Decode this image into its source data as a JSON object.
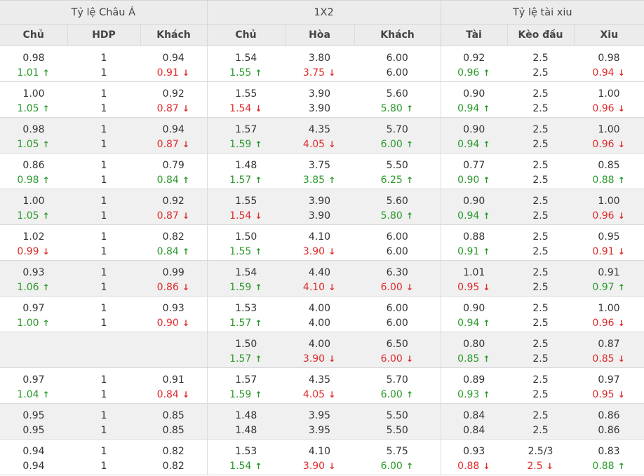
{
  "header": {
    "group_asian": "Tỷ lệ Châu Á",
    "group_1x2": "1X2",
    "group_ou": "Tỷ lệ tài xiu",
    "cols": [
      "Chủ",
      "HDP",
      "Khách",
      "Chủ",
      "Hòa",
      "Khách",
      "Tài",
      "Kèo đầu",
      "Xiu"
    ]
  },
  "rows": [
    {
      "shade": false,
      "top": [
        "0.98",
        "1",
        "0.94",
        "1.54",
        "3.80",
        "6.00",
        "0.92",
        "2.5",
        "0.98"
      ],
      "bottom": [
        [
          "1.01",
          "up"
        ],
        [
          "1",
          ""
        ],
        [
          "0.91",
          "down"
        ],
        [
          "1.55",
          "up"
        ],
        [
          "3.75",
          "down"
        ],
        [
          "6.00",
          ""
        ],
        [
          "0.96",
          "up"
        ],
        [
          "2.5",
          ""
        ],
        [
          "0.94",
          "down"
        ]
      ]
    },
    {
      "shade": false,
      "top": [
        "1.00",
        "1",
        "0.92",
        "1.55",
        "3.90",
        "5.60",
        "0.90",
        "2.5",
        "1.00"
      ],
      "bottom": [
        [
          "1.05",
          "up"
        ],
        [
          "1",
          ""
        ],
        [
          "0.87",
          "down"
        ],
        [
          "1.54",
          "down"
        ],
        [
          "3.90",
          ""
        ],
        [
          "5.80",
          "up"
        ],
        [
          "0.94",
          "up"
        ],
        [
          "2.5",
          ""
        ],
        [
          "0.96",
          "down"
        ]
      ]
    },
    {
      "shade": true,
      "top": [
        "0.98",
        "1",
        "0.94",
        "1.57",
        "4.35",
        "5.70",
        "0.90",
        "2.5",
        "1.00"
      ],
      "bottom": [
        [
          "1.05",
          "up"
        ],
        [
          "1",
          ""
        ],
        [
          "0.87",
          "down"
        ],
        [
          "1.59",
          "up"
        ],
        [
          "4.05",
          "down"
        ],
        [
          "6.00",
          "up"
        ],
        [
          "0.94",
          "up"
        ],
        [
          "2.5",
          ""
        ],
        [
          "0.96",
          "down"
        ]
      ]
    },
    {
      "shade": false,
      "top": [
        "0.86",
        "1",
        "0.79",
        "1.48",
        "3.75",
        "5.50",
        "0.77",
        "2.5",
        "0.85"
      ],
      "bottom": [
        [
          "0.98",
          "up"
        ],
        [
          "1",
          ""
        ],
        [
          "0.84",
          "up"
        ],
        [
          "1.57",
          "up"
        ],
        [
          "3.85",
          "up"
        ],
        [
          "6.25",
          "up"
        ],
        [
          "0.90",
          "up"
        ],
        [
          "2.5",
          ""
        ],
        [
          "0.88",
          "up"
        ]
      ]
    },
    {
      "shade": true,
      "top": [
        "1.00",
        "1",
        "0.92",
        "1.55",
        "3.90",
        "5.60",
        "0.90",
        "2.5",
        "1.00"
      ],
      "bottom": [
        [
          "1.05",
          "up"
        ],
        [
          "1",
          ""
        ],
        [
          "0.87",
          "down"
        ],
        [
          "1.54",
          "down"
        ],
        [
          "3.90",
          ""
        ],
        [
          "5.80",
          "up"
        ],
        [
          "0.94",
          "up"
        ],
        [
          "2.5",
          ""
        ],
        [
          "0.96",
          "down"
        ]
      ]
    },
    {
      "shade": false,
      "top": [
        "1.02",
        "1",
        "0.82",
        "1.50",
        "4.10",
        "6.00",
        "0.88",
        "2.5",
        "0.95"
      ],
      "bottom": [
        [
          "0.99",
          "down"
        ],
        [
          "1",
          ""
        ],
        [
          "0.84",
          "up"
        ],
        [
          "1.55",
          "up"
        ],
        [
          "3.90",
          "down"
        ],
        [
          "6.00",
          ""
        ],
        [
          "0.91",
          "up"
        ],
        [
          "2.5",
          ""
        ],
        [
          "0.91",
          "down"
        ]
      ]
    },
    {
      "shade": true,
      "top": [
        "0.93",
        "1",
        "0.99",
        "1.54",
        "4.40",
        "6.30",
        "1.01",
        "2.5",
        "0.91"
      ],
      "bottom": [
        [
          "1.06",
          "up"
        ],
        [
          "1",
          ""
        ],
        [
          "0.86",
          "down"
        ],
        [
          "1.59",
          "up"
        ],
        [
          "4.10",
          "down"
        ],
        [
          "6.00",
          "down"
        ],
        [
          "0.95",
          "down"
        ],
        [
          "2.5",
          ""
        ],
        [
          "0.97",
          "up"
        ]
      ]
    },
    {
      "shade": false,
      "top": [
        "0.97",
        "1",
        "0.93",
        "1.53",
        "4.00",
        "6.00",
        "0.90",
        "2.5",
        "1.00"
      ],
      "bottom": [
        [
          "1.00",
          "up"
        ],
        [
          "1",
          ""
        ],
        [
          "0.90",
          "down"
        ],
        [
          "1.57",
          "up"
        ],
        [
          "4.00",
          ""
        ],
        [
          "6.00",
          ""
        ],
        [
          "0.94",
          "up"
        ],
        [
          "2.5",
          ""
        ],
        [
          "0.96",
          "down"
        ]
      ]
    },
    {
      "shade": true,
      "top": [
        "",
        "",
        "",
        "1.50",
        "4.00",
        "6.50",
        "0.80",
        "2.5",
        "0.87"
      ],
      "bottom": [
        [
          "",
          ""
        ],
        [
          "",
          ""
        ],
        [
          "",
          ""
        ],
        [
          "1.57",
          "up"
        ],
        [
          "3.90",
          "down"
        ],
        [
          "6.00",
          "down"
        ],
        [
          "0.85",
          "up"
        ],
        [
          "2.5",
          ""
        ],
        [
          "0.85",
          "down"
        ]
      ]
    },
    {
      "shade": false,
      "top": [
        "0.97",
        "1",
        "0.91",
        "1.57",
        "4.35",
        "5.70",
        "0.89",
        "2.5",
        "0.97"
      ],
      "bottom": [
        [
          "1.04",
          "up"
        ],
        [
          "1",
          ""
        ],
        [
          "0.84",
          "down"
        ],
        [
          "1.59",
          "up"
        ],
        [
          "4.05",
          "down"
        ],
        [
          "6.00",
          "up"
        ],
        [
          "0.93",
          "up"
        ],
        [
          "2.5",
          ""
        ],
        [
          "0.95",
          "down"
        ]
      ]
    },
    {
      "shade": true,
      "top": [
        "0.95",
        "1",
        "0.85",
        "1.48",
        "3.95",
        "5.50",
        "0.84",
        "2.5",
        "0.86"
      ],
      "bottom": [
        [
          "0.95",
          ""
        ],
        [
          "1",
          ""
        ],
        [
          "0.85",
          ""
        ],
        [
          "1.48",
          ""
        ],
        [
          "3.95",
          ""
        ],
        [
          "5.50",
          ""
        ],
        [
          "0.84",
          ""
        ],
        [
          "2.5",
          ""
        ],
        [
          "0.86",
          ""
        ]
      ]
    },
    {
      "shade": false,
      "top": [
        "0.94",
        "1",
        "0.82",
        "1.53",
        "4.10",
        "5.75",
        "0.93",
        "2.5/3",
        "0.83"
      ],
      "bottom": [
        [
          "0.94",
          ""
        ],
        [
          "1",
          ""
        ],
        [
          "0.82",
          ""
        ],
        [
          "1.54",
          "up"
        ],
        [
          "3.90",
          "down"
        ],
        [
          "6.00",
          "up"
        ],
        [
          "0.88",
          "down"
        ],
        [
          "2.5",
          "down"
        ],
        [
          "0.88",
          "up"
        ]
      ]
    }
  ],
  "colors": {
    "up": "#2a9a2a",
    "down": "#e02a2a",
    "header_bg": "#ececec",
    "row_shade": "#f0f0f0"
  },
  "icons": {
    "up": "arrow-up-icon",
    "down": "arrow-down-icon"
  }
}
